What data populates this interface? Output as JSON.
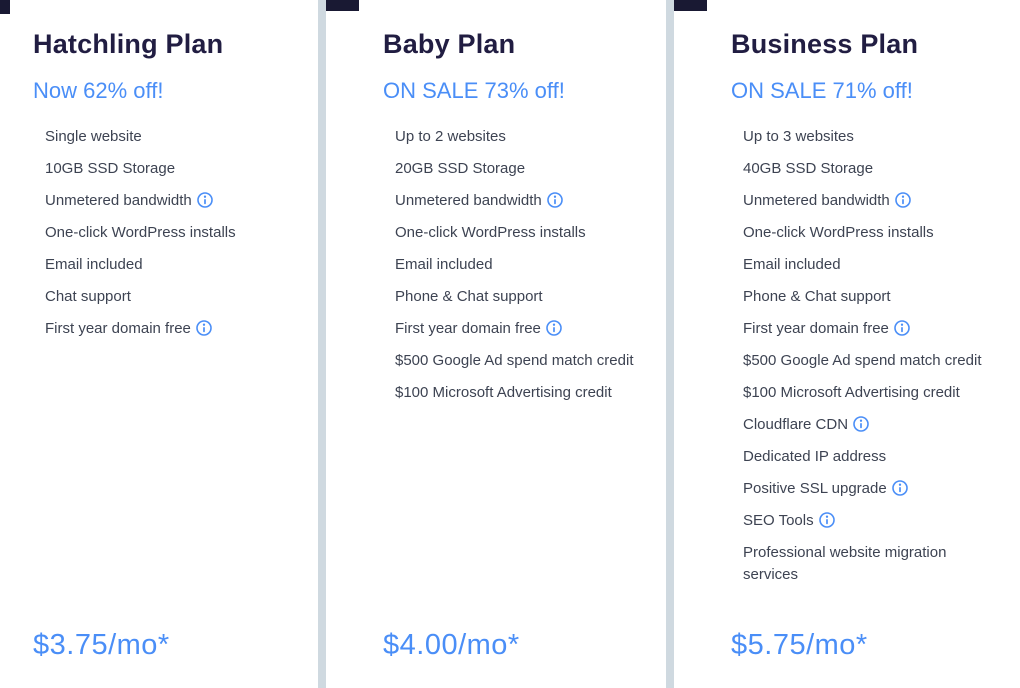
{
  "colors": {
    "accent_blue": "#4a8ef7",
    "heading_dark_navy": "#211d42",
    "feature_text_gray": "#3d4352",
    "divider_gray": "#cfd9e0",
    "tab_dark_navy": "#191933"
  },
  "icons": {
    "info": "info-icon (blue circled i, tooltip trigger)"
  },
  "plans": [
    {
      "name": "Hatchling Plan",
      "sale": "Now 62% off!",
      "price": "$3.75/mo*",
      "features": [
        {
          "text": "Single website",
          "info": false
        },
        {
          "text": "10GB SSD Storage",
          "info": false
        },
        {
          "text": "Unmetered bandwidth",
          "info": true
        },
        {
          "text": "One-click WordPress installs",
          "info": false
        },
        {
          "text": "Email included",
          "info": false
        },
        {
          "text": "Chat support",
          "info": false
        },
        {
          "text": "First year domain free",
          "info": true
        }
      ]
    },
    {
      "name": "Baby Plan",
      "sale": "ON SALE 73% off!",
      "price": "$4.00/mo*",
      "features": [
        {
          "text": "Up to 2 websites",
          "info": false
        },
        {
          "text": "20GB SSD Storage",
          "info": false
        },
        {
          "text": "Unmetered bandwidth",
          "info": true
        },
        {
          "text": "One-click WordPress installs",
          "info": false
        },
        {
          "text": "Email included",
          "info": false
        },
        {
          "text": "Phone & Chat support",
          "info": false
        },
        {
          "text": "First year domain free",
          "info": true
        },
        {
          "text": "$500 Google Ad spend match credit",
          "info": false
        },
        {
          "text": "$100 Microsoft Advertising credit",
          "info": false
        }
      ]
    },
    {
      "name": "Business Plan",
      "sale": "ON SALE 71% off!",
      "price": "$5.75/mo*",
      "features": [
        {
          "text": "Up to 3 websites",
          "info": false
        },
        {
          "text": "40GB SSD Storage",
          "info": false
        },
        {
          "text": "Unmetered bandwidth",
          "info": true
        },
        {
          "text": "One-click WordPress installs",
          "info": false
        },
        {
          "text": "Email included",
          "info": false
        },
        {
          "text": "Phone & Chat support",
          "info": false
        },
        {
          "text": "First year domain free",
          "info": true
        },
        {
          "text": "$500 Google Ad spend match credit",
          "info": false
        },
        {
          "text": "$100 Microsoft Advertising credit",
          "info": false
        },
        {
          "text": "Cloudflare CDN",
          "info": true
        },
        {
          "text": "Dedicated IP address",
          "info": false
        },
        {
          "text": "Positive SSL upgrade",
          "info": true
        },
        {
          "text": "SEO Tools",
          "info": true
        },
        {
          "text": "Professional website migration services",
          "info": false
        }
      ]
    }
  ]
}
